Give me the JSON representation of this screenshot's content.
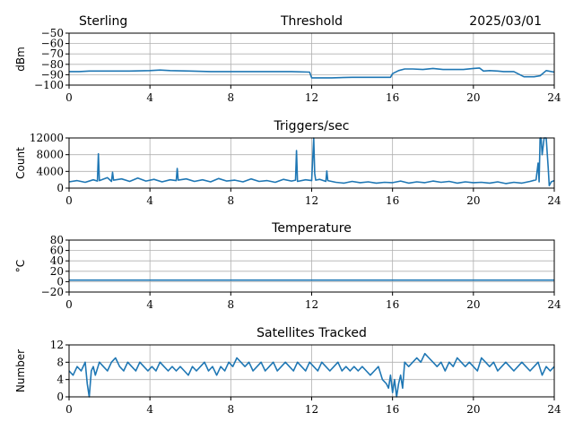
{
  "header": {
    "station": "Sterling",
    "date": "2025/03/01"
  },
  "colors": {
    "series": "#1f77b4",
    "grid": "#b0b0b0"
  },
  "chart_data": [
    {
      "id": "threshold",
      "type": "line",
      "title": "Threshold",
      "ylabel": "dBm",
      "xlim": [
        0,
        24
      ],
      "ylim": [
        -100,
        -50
      ],
      "xticks": [
        0,
        4,
        8,
        12,
        16,
        20,
        24
      ],
      "yticks": [
        -100,
        -90,
        -80,
        -70,
        -60,
        -50
      ],
      "ytick_labels": [
        "−100",
        "−90",
        "−80",
        "−70",
        "−60",
        "−50"
      ],
      "grid": true,
      "x": [
        0,
        0.5,
        1,
        2,
        3,
        4,
        4.5,
        5,
        6,
        7,
        8,
        9,
        10,
        11,
        11.9,
        12,
        12.5,
        13,
        14,
        15,
        15.9,
        16,
        16.3,
        16.6,
        17,
        17.5,
        18,
        18.5,
        19,
        19.5,
        20,
        20.3,
        20.5,
        20.8,
        21.2,
        21.5,
        22,
        22.5,
        23,
        23.3,
        23.6,
        24
      ],
      "y": [
        -87,
        -87,
        -86.5,
        -86.5,
        -86.5,
        -86,
        -85.5,
        -86,
        -86.5,
        -87,
        -87,
        -87,
        -87,
        -87,
        -87.5,
        -93,
        -93,
        -93,
        -92.5,
        -92.5,
        -92.5,
        -89,
        -86,
        -84.5,
        -84.5,
        -85,
        -84,
        -85,
        -85,
        -85,
        -84,
        -83.5,
        -86.5,
        -86,
        -86.5,
        -87,
        -87,
        -92,
        -92,
        -91,
        -86,
        -87.5
      ]
    },
    {
      "id": "triggers",
      "type": "line",
      "title": "Triggers/sec",
      "ylabel": "Count",
      "xlim": [
        0,
        24
      ],
      "ylim": [
        0,
        12000
      ],
      "xticks": [
        0,
        4,
        8,
        12,
        16,
        20,
        24
      ],
      "yticks": [
        0,
        4000,
        8000,
        12000
      ],
      "ytick_labels": [
        "0",
        "4000",
        "8000",
        "12000"
      ],
      "grid": true,
      "x": [
        0,
        0.4,
        0.8,
        1.2,
        1.4,
        1.45,
        1.5,
        1.9,
        2.1,
        2.15,
        2.2,
        2.6,
        3.0,
        3.4,
        3.8,
        4.2,
        4.6,
        5.0,
        5.3,
        5.35,
        5.4,
        5.8,
        6.2,
        6.6,
        7.0,
        7.4,
        7.8,
        8.2,
        8.6,
        9.0,
        9.4,
        9.8,
        10.2,
        10.6,
        11.0,
        11.2,
        11.25,
        11.3,
        11.7,
        12.0,
        12.1,
        12.15,
        12.2,
        12.4,
        12.7,
        12.75,
        12.8,
        13.2,
        13.6,
        14.0,
        14.4,
        14.8,
        15.2,
        15.6,
        16.0,
        16.4,
        16.8,
        17.2,
        17.6,
        18.0,
        18.4,
        18.8,
        19.2,
        19.6,
        20.0,
        20.4,
        20.8,
        21.2,
        21.6,
        22.0,
        22.4,
        22.8,
        23.1,
        23.2,
        23.25,
        23.3,
        23.35,
        23.4,
        23.5,
        23.6,
        23.7,
        23.75,
        23.85,
        24
      ],
      "y": [
        1500,
        1800,
        1400,
        2000,
        1700,
        8200,
        1800,
        2500,
        1600,
        3800,
        1900,
        2200,
        1600,
        2400,
        1700,
        2100,
        1500,
        2000,
        1800,
        4700,
        1900,
        2200,
        1600,
        2000,
        1500,
        2300,
        1700,
        1900,
        1500,
        2200,
        1600,
        1800,
        1400,
        2100,
        1700,
        1900,
        9000,
        1600,
        2000,
        1800,
        12000,
        3500,
        1900,
        2100,
        1600,
        4100,
        1800,
        1400,
        1200,
        1600,
        1300,
        1500,
        1200,
        1400,
        1300,
        1700,
        1200,
        1500,
        1300,
        1700,
        1400,
        1600,
        1200,
        1500,
        1300,
        1400,
        1200,
        1500,
        1100,
        1400,
        1200,
        1600,
        2000,
        6000,
        1500,
        12000,
        12000,
        8000,
        12000,
        12000,
        5000,
        600,
        1500,
        1800
      ]
    },
    {
      "id": "temperature",
      "type": "line",
      "title": "Temperature",
      "ylabel": "°C",
      "xlim": [
        0,
        24
      ],
      "ylim": [
        -20,
        80
      ],
      "xticks": [
        0,
        4,
        8,
        12,
        16,
        20,
        24
      ],
      "yticks": [
        -20,
        0,
        20,
        40,
        60,
        80
      ],
      "ytick_labels": [
        "−20",
        "0",
        "20",
        "40",
        "60",
        "80"
      ],
      "grid": true,
      "x": [
        0,
        24
      ],
      "y": [
        3,
        3
      ]
    },
    {
      "id": "satellites",
      "type": "line",
      "title": "Satellites Tracked",
      "ylabel": "Number",
      "xlim": [
        0,
        24
      ],
      "ylim": [
        0,
        12
      ],
      "xticks": [
        0,
        4,
        8,
        12,
        16,
        20,
        24
      ],
      "yticks": [
        0,
        4,
        8,
        12
      ],
      "ytick_labels": [
        "0",
        "4",
        "8",
        "12"
      ],
      "grid": true,
      "x": [
        0,
        0.2,
        0.4,
        0.6,
        0.8,
        0.9,
        1.0,
        1.1,
        1.2,
        1.3,
        1.5,
        1.7,
        1.9,
        2.1,
        2.3,
        2.5,
        2.7,
        2.9,
        3.1,
        3.3,
        3.5,
        3.7,
        3.9,
        4.1,
        4.3,
        4.5,
        4.7,
        4.9,
        5.1,
        5.3,
        5.5,
        5.7,
        5.9,
        6.1,
        6.3,
        6.5,
        6.7,
        6.9,
        7.1,
        7.3,
        7.5,
        7.7,
        7.9,
        8.1,
        8.3,
        8.5,
        8.7,
        8.9,
        9.1,
        9.3,
        9.5,
        9.7,
        9.9,
        10.1,
        10.3,
        10.5,
        10.7,
        10.9,
        11.1,
        11.3,
        11.5,
        11.7,
        11.9,
        12.1,
        12.3,
        12.5,
        12.7,
        12.9,
        13.1,
        13.3,
        13.5,
        13.7,
        13.9,
        14.1,
        14.3,
        14.5,
        14.7,
        14.9,
        15.1,
        15.3,
        15.5,
        15.7,
        15.8,
        15.9,
        16.0,
        16.1,
        16.2,
        16.3,
        16.4,
        16.5,
        16.6,
        16.8,
        17.0,
        17.2,
        17.4,
        17.6,
        17.8,
        18.0,
        18.2,
        18.4,
        18.6,
        18.8,
        19.0,
        19.2,
        19.4,
        19.6,
        19.8,
        20.0,
        20.2,
        20.4,
        20.6,
        20.8,
        21.0,
        21.2,
        21.4,
        21.6,
        21.8,
        22.0,
        22.2,
        22.4,
        22.6,
        22.8,
        23.0,
        23.2,
        23.4,
        23.6,
        23.8,
        24.0
      ],
      "y": [
        6,
        5,
        7,
        6,
        8,
        3,
        0,
        6,
        7,
        5,
        8,
        7,
        6,
        8,
        9,
        7,
        6,
        8,
        7,
        6,
        8,
        7,
        6,
        7,
        6,
        8,
        7,
        6,
        7,
        6,
        7,
        6,
        5,
        7,
        6,
        7,
        8,
        6,
        7,
        5,
        7,
        6,
        8,
        7,
        9,
        8,
        7,
        8,
        6,
        7,
        8,
        6,
        7,
        8,
        6,
        7,
        8,
        7,
        6,
        8,
        7,
        6,
        8,
        7,
        6,
        8,
        7,
        6,
        7,
        8,
        6,
        7,
        6,
        7,
        6,
        7,
        6,
        5,
        6,
        7,
        4,
        3,
        2,
        5,
        1,
        4,
        0,
        3,
        5,
        2,
        8,
        7,
        8,
        9,
        8,
        10,
        9,
        8,
        7,
        8,
        6,
        8,
        7,
        9,
        8,
        7,
        8,
        7,
        6,
        9,
        8,
        7,
        8,
        6,
        7,
        8,
        7,
        6,
        7,
        8,
        7,
        6,
        7,
        8,
        5,
        7,
        6,
        7
      ]
    }
  ]
}
